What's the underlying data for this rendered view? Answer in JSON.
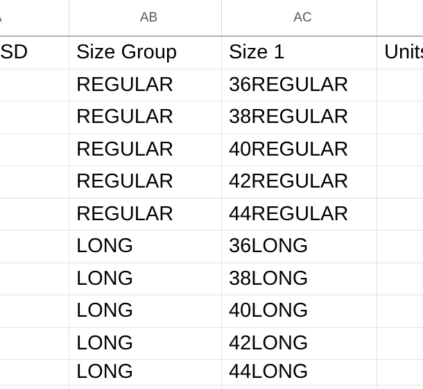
{
  "columns": [
    {
      "letter": "A"
    },
    {
      "letter": "AB"
    },
    {
      "letter": "AC"
    },
    {
      "letter": ""
    }
  ],
  "header_cells": [
    "SD",
    "Size Group",
    "Size 1",
    "Units"
  ],
  "rows": [
    [
      "",
      "REGULAR",
      "36REGULAR",
      ""
    ],
    [
      "",
      "REGULAR",
      "38REGULAR",
      ""
    ],
    [
      "",
      "REGULAR",
      "40REGULAR",
      ""
    ],
    [
      "",
      "REGULAR",
      "42REGULAR",
      ""
    ],
    [
      "",
      "REGULAR",
      "44REGULAR",
      ""
    ],
    [
      "",
      "LONG",
      "36LONG",
      ""
    ],
    [
      "",
      "LONG",
      "38LONG",
      ""
    ],
    [
      "",
      "LONG",
      "40LONG",
      ""
    ],
    [
      "",
      "LONG",
      "42LONG",
      ""
    ],
    [
      "",
      "LONG",
      "44LONG",
      ""
    ]
  ],
  "colors": {
    "background": "#ffffff",
    "grid_line": "#e2e2e2",
    "column_header_border": "#b2b2b2",
    "column_header_text": "#55585c",
    "cell_text": "#000000"
  }
}
